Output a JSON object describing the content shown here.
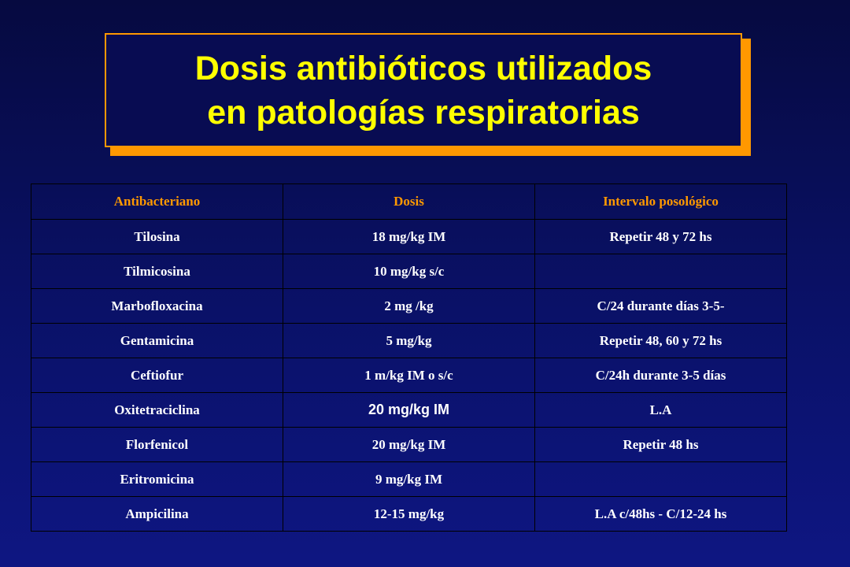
{
  "title": {
    "line1": "Dosis antibióticos utilizados",
    "line2": "en patologías respiratorias"
  },
  "table": {
    "headers": [
      "Antibacteriano",
      "Dosis",
      "Intervalo posológico"
    ],
    "rows": [
      [
        "Tilosina",
        "18 mg/kg  IM",
        "Repetir 48 y 72 hs"
      ],
      [
        "Tilmicosina",
        "10 mg/kg  s/c",
        ""
      ],
      [
        "Marbofloxacina",
        "2 mg /kg",
        "C/24 durante días 3-5-"
      ],
      [
        "Gentamicina",
        "5 mg/kg",
        "Repetir 48, 60 y 72 hs"
      ],
      [
        "Ceftiofur",
        "1 m/kg IM o s/c",
        "C/24h durante 3-5 días"
      ],
      [
        "Oxitetraciclina",
        "20 mg/kg IM",
        "L.A"
      ],
      [
        "Florfenicol",
        "20 mg/kg IM",
        "Repetir 48 hs"
      ],
      [
        "Eritromicina",
        "9 mg/kg IM",
        ""
      ],
      [
        "Ampicilina",
        "12-15 mg/kg",
        "L.A  c/48hs - C/12-24 hs"
      ]
    ]
  },
  "colors": {
    "title_text": "#ffff00",
    "title_border": "#ff9800",
    "header_text": "#ff9900",
    "cell_text": "#ffffff",
    "background": "#0a1168"
  }
}
